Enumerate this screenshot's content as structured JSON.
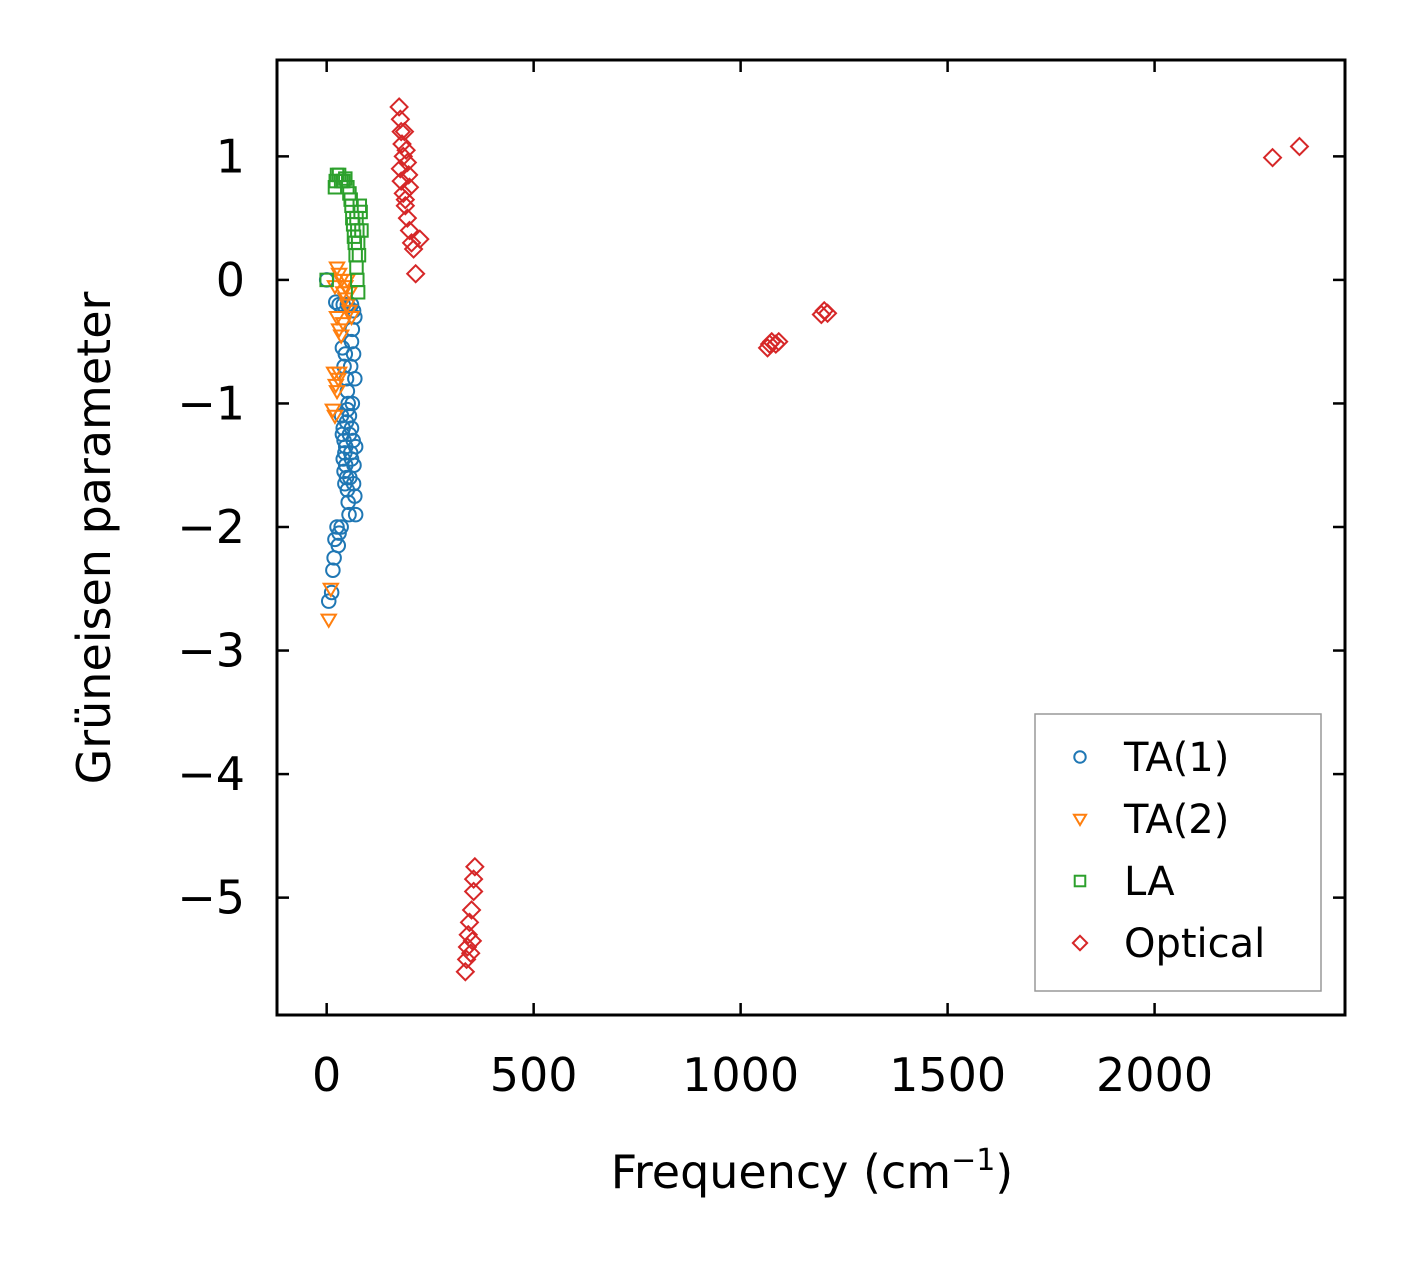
{
  "chart_data": {
    "type": "scatter",
    "title": "",
    "xlabel": "Frequency (cm",
    "xlabel_sup": "−1",
    "xlabel_end": ")",
    "ylabel": "Grüneisen parameter",
    "xlim": [
      -120,
      2460
    ],
    "ylim": [
      -5.95,
      1.78
    ],
    "xticks": [
      0,
      500,
      1000,
      1500,
      2000
    ],
    "xtick_labels": [
      "0",
      "500",
      "1000",
      "1500",
      "2000"
    ],
    "yticks": [
      1,
      0,
      -1,
      -2,
      -3,
      -4,
      -5
    ],
    "ytick_labels": [
      "1",
      "0",
      "−1",
      "−2",
      "−3",
      "−4",
      "−5"
    ],
    "grid": false,
    "legend_position": "bottom-right",
    "series": [
      {
        "name": "TA(1)",
        "marker": "circle",
        "color": "#1f77b4",
        "points": [
          [
            0,
            0.0
          ],
          [
            5,
            -2.6
          ],
          [
            12,
            -2.53
          ],
          [
            15,
            -2.35
          ],
          [
            18,
            -2.25
          ],
          [
            20,
            -2.1
          ],
          [
            25,
            -2.0
          ],
          [
            28,
            -2.15
          ],
          [
            30,
            -2.05
          ],
          [
            35,
            -2.0
          ],
          [
            22,
            -0.18
          ],
          [
            30,
            -0.2
          ],
          [
            40,
            -0.2
          ],
          [
            50,
            -0.2
          ],
          [
            60,
            -0.2
          ],
          [
            65,
            -0.25
          ],
          [
            68,
            -0.3
          ],
          [
            38,
            -0.55
          ],
          [
            42,
            -0.7
          ],
          [
            45,
            -0.6
          ],
          [
            48,
            -0.8
          ],
          [
            50,
            -0.9
          ],
          [
            52,
            -1.0
          ],
          [
            55,
            -1.1
          ],
          [
            58,
            -0.7
          ],
          [
            60,
            -0.5
          ],
          [
            62,
            -0.4
          ],
          [
            65,
            -0.6
          ],
          [
            68,
            -0.8
          ],
          [
            40,
            -1.2
          ],
          [
            42,
            -1.3
          ],
          [
            44,
            -1.4
          ],
          [
            46,
            -1.5
          ],
          [
            48,
            -1.6
          ],
          [
            50,
            -1.7
          ],
          [
            52,
            -1.8
          ],
          [
            54,
            -1.9
          ],
          [
            56,
            -1.6
          ],
          [
            58,
            -1.4
          ],
          [
            60,
            -1.2
          ],
          [
            62,
            -1.0
          ],
          [
            64,
            -1.3
          ],
          [
            66,
            -1.5
          ],
          [
            68,
            -1.75
          ],
          [
            70,
            -1.9
          ],
          [
            36,
            -1.1
          ],
          [
            38,
            -1.25
          ],
          [
            40,
            -1.45
          ],
          [
            42,
            -1.55
          ],
          [
            44,
            -1.65
          ],
          [
            46,
            -1.35
          ],
          [
            48,
            -1.15
          ],
          [
            50,
            -1.05
          ],
          [
            55,
            -1.25
          ],
          [
            60,
            -1.45
          ],
          [
            65,
            -1.65
          ],
          [
            70,
            -1.35
          ]
        ]
      },
      {
        "name": "TA(2)",
        "marker": "triangle-down",
        "color": "#ff7f0e",
        "points": [
          [
            5,
            -2.75
          ],
          [
            10,
            -2.5
          ],
          [
            15,
            -1.05
          ],
          [
            20,
            -1.1
          ],
          [
            18,
            -0.75
          ],
          [
            22,
            -0.85
          ],
          [
            25,
            -0.9
          ],
          [
            28,
            -0.8
          ],
          [
            30,
            -0.75
          ],
          [
            20,
            -0.05
          ],
          [
            25,
            0.1
          ],
          [
            30,
            0.05
          ],
          [
            35,
            0.0
          ],
          [
            40,
            -0.1
          ],
          [
            45,
            -0.15
          ],
          [
            50,
            -0.2
          ],
          [
            55,
            -0.25
          ],
          [
            60,
            -0.3
          ],
          [
            25,
            -0.3
          ],
          [
            30,
            -0.4
          ],
          [
            35,
            -0.45
          ],
          [
            40,
            -0.35
          ],
          [
            45,
            -0.05
          ],
          [
            50,
            0.0
          ],
          [
            55,
            -0.1
          ]
        ]
      },
      {
        "name": "LA",
        "marker": "square",
        "color": "#2ca02c",
        "points": [
          [
            0,
            0.0
          ],
          [
            20,
            0.75
          ],
          [
            22,
            0.8
          ],
          [
            25,
            0.85
          ],
          [
            30,
            0.85
          ],
          [
            35,
            0.8
          ],
          [
            40,
            0.8
          ],
          [
            45,
            0.82
          ],
          [
            50,
            0.75
          ],
          [
            55,
            0.7
          ],
          [
            58,
            0.65
          ],
          [
            60,
            0.6
          ],
          [
            62,
            0.5
          ],
          [
            64,
            0.45
          ],
          [
            66,
            0.35
          ],
          [
            68,
            0.3
          ],
          [
            70,
            0.2
          ],
          [
            72,
            0.1
          ],
          [
            74,
            0.0
          ],
          [
            76,
            -0.1
          ],
          [
            72,
            0.5
          ],
          [
            74,
            0.4
          ],
          [
            76,
            0.3
          ],
          [
            78,
            0.2
          ],
          [
            80,
            0.6
          ],
          [
            82,
            0.55
          ],
          [
            84,
            0.4
          ]
        ]
      },
      {
        "name": "Optical",
        "marker": "diamond",
        "color": "#d62728",
        "points": [
          [
            175,
            1.4
          ],
          [
            178,
            1.3
          ],
          [
            180,
            1.2
          ],
          [
            182,
            1.1
          ],
          [
            185,
            1.0
          ],
          [
            178,
            0.9
          ],
          [
            180,
            0.8
          ],
          [
            185,
            0.7
          ],
          [
            190,
            0.6
          ],
          [
            195,
            0.5
          ],
          [
            200,
            0.4
          ],
          [
            205,
            0.3
          ],
          [
            210,
            0.25
          ],
          [
            188,
            1.2
          ],
          [
            192,
            1.05
          ],
          [
            195,
            0.95
          ],
          [
            198,
            0.85
          ],
          [
            200,
            0.75
          ],
          [
            190,
            0.65
          ],
          [
            225,
            0.33
          ],
          [
            215,
            0.05
          ],
          [
            335,
            -5.6
          ],
          [
            338,
            -5.5
          ],
          [
            340,
            -5.4
          ],
          [
            342,
            -5.3
          ],
          [
            345,
            -5.2
          ],
          [
            350,
            -5.1
          ],
          [
            348,
            -5.45
          ],
          [
            352,
            -5.35
          ],
          [
            355,
            -4.95
          ],
          [
            355,
            -4.85
          ],
          [
            358,
            -4.75
          ],
          [
            1065,
            -0.55
          ],
          [
            1070,
            -0.52
          ],
          [
            1075,
            -0.5
          ],
          [
            1085,
            -0.52
          ],
          [
            1092,
            -0.5
          ],
          [
            1195,
            -0.28
          ],
          [
            1202,
            -0.25
          ],
          [
            1210,
            -0.27
          ],
          [
            2285,
            0.99
          ],
          [
            2350,
            1.08
          ]
        ]
      }
    ]
  }
}
